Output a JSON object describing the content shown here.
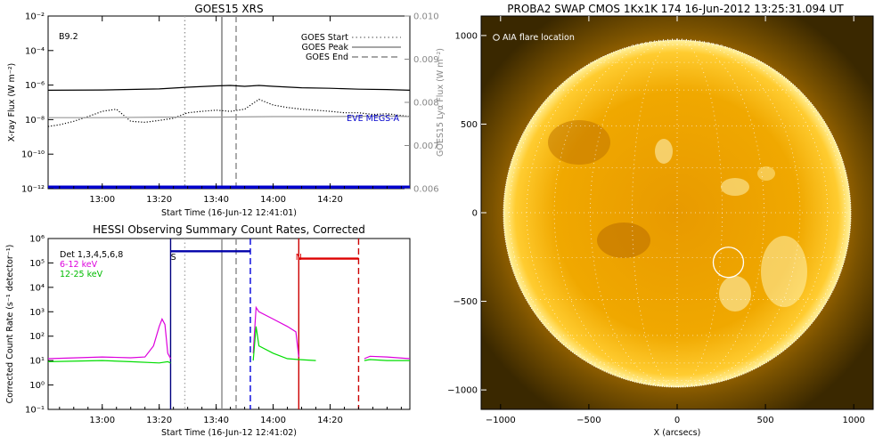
{
  "chart_data": [
    {
      "type": "line",
      "title": "GOES15 XRS",
      "xlabel": "Start Time (16-Jun-12 12:41:01)",
      "ylabel": "X-ray Flux (W m⁻²)",
      "ylabel_right": "GOES15 Lyα Flux (W m⁻²)",
      "annotation": "B9.2",
      "eve_label": "EVE MEGS-A",
      "x_ticks": [
        "13:00",
        "13:20",
        "13:40",
        "14:00",
        "14:20"
      ],
      "y_ticks": [
        "10⁻¹²",
        "10⁻¹⁰",
        "10⁻⁸",
        "10⁻⁶",
        "10⁻⁴",
        "10⁻²"
      ],
      "y_ticks_right": [
        "0.006",
        "0.007",
        "0.008",
        "0.009",
        "0.010"
      ],
      "yscale": "log",
      "ylim": [
        1e-12,
        0.01
      ],
      "ylim_right": [
        0.006,
        0.01
      ],
      "xlim_min": [
        -19,
        108
      ],
      "legend": [
        {
          "label": "GOES Start",
          "style": "dotted"
        },
        {
          "label": "GOES Peak",
          "style": "solid"
        },
        {
          "label": "GOES End",
          "style": "dashed"
        }
      ],
      "vlines_min": {
        "start": 29,
        "peak": 42,
        "end": 47
      },
      "series": [
        {
          "key": "long",
          "color": "#000000",
          "style": "solid",
          "x": [
            -19,
            0,
            20,
            30,
            40,
            45,
            50,
            55,
            60,
            70,
            80,
            90,
            100,
            108
          ],
          "y": [
            5e-07,
            5.2e-07,
            6e-07,
            7.5e-07,
            9e-07,
            9.5e-07,
            8.5e-07,
            9.5e-07,
            8.5e-07,
            7e-07,
            6.5e-07,
            5.8e-07,
            5.5e-07,
            5e-07
          ]
        },
        {
          "key": "short",
          "color": "#000000",
          "style": "dotted",
          "x": [
            -19,
            -15,
            -10,
            -5,
            0,
            5,
            10,
            15,
            20,
            25,
            30,
            35,
            40,
            45,
            50,
            55,
            60,
            65,
            70,
            75,
            80,
            85,
            90,
            95,
            100,
            108
          ],
          "y": [
            4e-09,
            5e-09,
            8e-09,
            1.5e-08,
            3e-08,
            4e-08,
            8e-09,
            7e-09,
            9e-09,
            1.2e-08,
            2.5e-08,
            3e-08,
            3.5e-08,
            3e-08,
            4e-08,
            1.5e-07,
            7e-08,
            5e-08,
            4e-08,
            3.5e-08,
            3e-08,
            2.5e-08,
            2.5e-08,
            2e-08,
            2.2e-08,
            1.5e-08
          ]
        },
        {
          "key": "lya",
          "color": "#999999",
          "style": "solid",
          "x": [
            -19,
            0,
            20,
            40,
            60,
            80,
            100,
            108
          ],
          "y": [
            1.3e-08,
            1.3e-08,
            1.4e-08,
            1.4e-08,
            1.5e-08,
            1.5e-08,
            1.6e-08,
            1.5e-08
          ]
        },
        {
          "key": "eve",
          "color": "#0000cc",
          "style": "solid",
          "x": [
            -19,
            108
          ],
          "y": [
            1.2e-12,
            1.2e-12
          ]
        }
      ]
    },
    {
      "type": "line",
      "title": "HESSI Observing Summary Count Rates, Corrected",
      "xlabel": "Start Time (16-Jun-12 12:41:02)",
      "ylabel": "Corrected Count Rate (s⁻¹ detector⁻¹)",
      "x_ticks": [
        "13:00",
        "13:20",
        "13:40",
        "14:00",
        "14:20"
      ],
      "y_ticks": [
        "10⁻¹",
        "10⁰",
        "10¹",
        "10²",
        "10³",
        "10⁴",
        "10⁵",
        "10⁶"
      ],
      "yscale": "log",
      "ylim": [
        0.1,
        1000000.0
      ],
      "xlim_min": [
        -19,
        108
      ],
      "legend": [
        {
          "label": "Det 1,3,4,5,6,8",
          "color": "#000000"
        },
        {
          "label": "6-12 keV",
          "color": "#dd00dd"
        },
        {
          "label": "12-25 keV",
          "color": "#00dd00"
        }
      ],
      "markers": [
        {
          "label": "S",
          "x_min": 25,
          "color": "#000000"
        },
        {
          "label": "N",
          "x_min": 69,
          "color": "#dd0000"
        }
      ],
      "bars": [
        {
          "x": [
            24,
            52
          ],
          "y": 300000.0,
          "color": "#0000aa"
        },
        {
          "x": [
            69,
            90
          ],
          "y": 150000.0,
          "color": "#dd0000"
        }
      ],
      "vlines_min": [
        {
          "x": 24,
          "color": "#000080",
          "style": "solid"
        },
        {
          "x": 29,
          "color": "#aaaaaa",
          "style": "dotted"
        },
        {
          "x": 42,
          "color": "#888888",
          "style": "solid"
        },
        {
          "x": 47,
          "color": "#888888",
          "style": "dashed"
        },
        {
          "x": 52,
          "color": "#0000dd",
          "style": "dashed"
        },
        {
          "x": 69,
          "color": "#cc0000",
          "style": "solid"
        },
        {
          "x": 90,
          "color": "#cc0000",
          "style": "dashed"
        }
      ],
      "series": [
        {
          "key": "6-12 keV",
          "color": "#dd00dd",
          "x": [
            -19,
            0,
            10,
            15,
            18,
            20,
            21,
            22,
            23,
            24
          ],
          "y": [
            12,
            14,
            13,
            14,
            40,
            250,
            500,
            300,
            20,
            12
          ]
        },
        {
          "key": "12-25 keV",
          "color": "#00dd00",
          "x": [
            -19,
            0,
            10,
            20,
            23,
            24
          ],
          "y": [
            9,
            10,
            9,
            8,
            9,
            8
          ]
        },
        {
          "key": "6-12 keV b",
          "color": "#dd00dd",
          "x": [
            53,
            54,
            55,
            60,
            65,
            68,
            69
          ],
          "y": [
            20,
            1500,
            1000,
            500,
            250,
            150,
            14
          ]
        },
        {
          "key": "12-25 keV b",
          "color": "#00dd00",
          "x": [
            53,
            54,
            55,
            60,
            65,
            69,
            75
          ],
          "y": [
            10,
            250,
            40,
            20,
            12,
            11,
            10
          ]
        },
        {
          "key": "6-12 keV c",
          "color": "#dd00dd",
          "x": [
            92,
            94,
            100,
            108
          ],
          "y": [
            12,
            15,
            14,
            12
          ]
        },
        {
          "key": "12-25 keV c",
          "color": "#00dd00",
          "x": [
            92,
            94,
            100,
            108
          ],
          "y": [
            10,
            11,
            10,
            10
          ]
        }
      ]
    },
    {
      "type": "image",
      "title": "PROBA2 SWAP CMOS 1Kx1K 174 16-Jun-2012 13:25:31.094 UT",
      "xlabel": "X (arcsecs)",
      "ylabel": "Y (arcsecs)",
      "annotation": "AIA flare location",
      "x_ticks": [
        "−1000",
        "−500",
        "0",
        "500",
        "1000"
      ],
      "y_ticks": [
        "1000",
        "500",
        "0",
        "−500",
        "−1000"
      ],
      "xlim": [
        -1110,
        1110
      ],
      "ylim": [
        -1110,
        1110
      ],
      "flare_location_arcsec": [
        290,
        -280
      ],
      "colors": {
        "disk": "#e8a000",
        "background": "#3a2800"
      }
    }
  ]
}
